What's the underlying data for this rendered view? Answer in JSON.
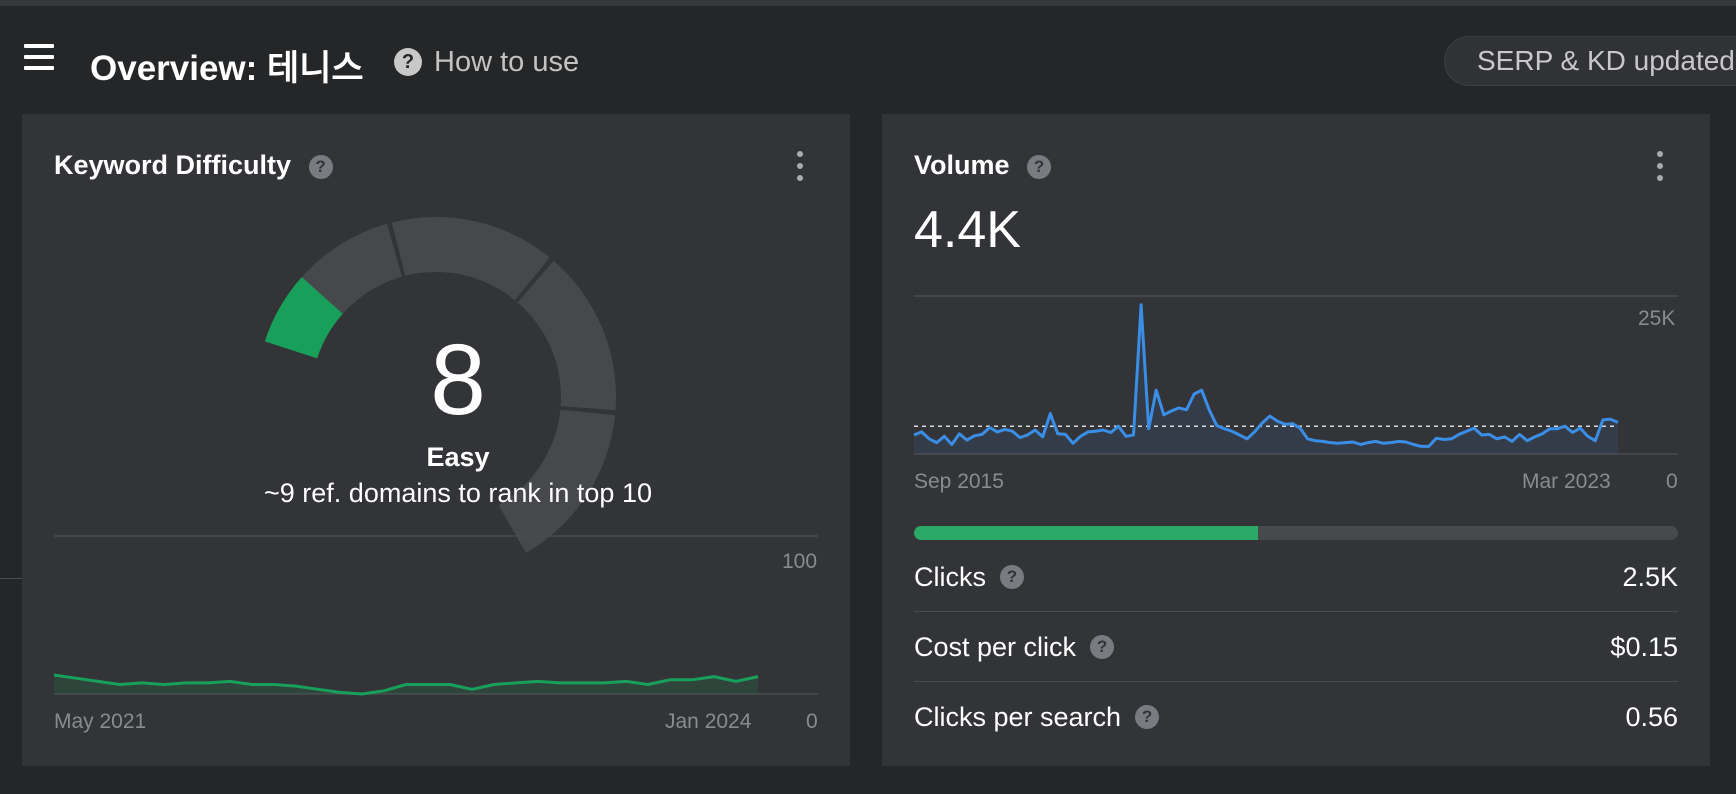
{
  "header": {
    "title": "Overview: 테니스",
    "help_label": "How to use",
    "status_pill": "SERP & KD updated"
  },
  "keyword_difficulty": {
    "title": "Keyword Difficulty",
    "score": "8",
    "label": "Easy",
    "subtitle": "~9 ref. domains to rank in top 10",
    "gauge_fill_fraction": 0.08,
    "color": "#18a05a"
  },
  "volume": {
    "title": "Volume",
    "value": "4.4K",
    "clicks_fraction": 0.45,
    "progress_color": "#2aa866",
    "line_color": "#3a8ee6",
    "metrics": [
      {
        "label": "Clicks",
        "value": "2.5K"
      },
      {
        "label": "Cost per click",
        "value": "$0.15"
      },
      {
        "label": "Clicks per search",
        "value": "0.56"
      }
    ]
  },
  "chart_data": [
    {
      "type": "area",
      "x_start": "May 2021",
      "x_end": "Jan 2024",
      "x_labels": [
        "May 2021",
        "Jan 2024"
      ],
      "ylim": [
        0,
        100
      ],
      "y_labels": [
        "100",
        "0"
      ],
      "series": [
        {
          "values": [
            12,
            10,
            8,
            6,
            7,
            6,
            7,
            7,
            8,
            6,
            6,
            5,
            3,
            1,
            0,
            2,
            6,
            6,
            6,
            3,
            6,
            7,
            8,
            7,
            7,
            7,
            8,
            6,
            9,
            9,
            11,
            8,
            11
          ]
        }
      ]
    },
    {
      "type": "area",
      "x_start": "Sep 2015",
      "x_end": "Mar 2023",
      "x_labels": [
        "Sep 2015",
        "Mar 2023"
      ],
      "ylim": [
        0,
        25000
      ],
      "y_labels": [
        "25K",
        "0"
      ],
      "reference_line": 4400,
      "series": [
        {
          "values": [
            3000,
            3500,
            2400,
            1800,
            2800,
            1500,
            3200,
            2200,
            2900,
            3100,
            4200,
            3500,
            3900,
            3600,
            2600,
            3000,
            3800,
            2700,
            6400,
            3200,
            3100,
            1700,
            2800,
            3500,
            3600,
            3800,
            3400,
            4400,
            2800,
            3000,
            23600,
            4000,
            10100,
            6200,
            6800,
            7300,
            7000,
            9500,
            10100,
            7000,
            4500,
            4000,
            3600,
            3000,
            2400,
            3500,
            4900,
            6000,
            5200,
            4700,
            4800,
            4100,
            2400,
            2100,
            2000,
            1800,
            1700,
            1800,
            1900,
            1500,
            1800,
            2000,
            1700,
            1800,
            2000,
            1900,
            1500,
            1200,
            1200,
            2500,
            2300,
            2400,
            3100,
            3600,
            4100,
            3000,
            3100,
            2400,
            2700,
            2000,
            3100,
            2100,
            2700,
            3200,
            4000,
            4000,
            4400,
            3400,
            4100,
            2800,
            2100,
            5400,
            5500,
            5000
          ]
        }
      ]
    }
  ]
}
